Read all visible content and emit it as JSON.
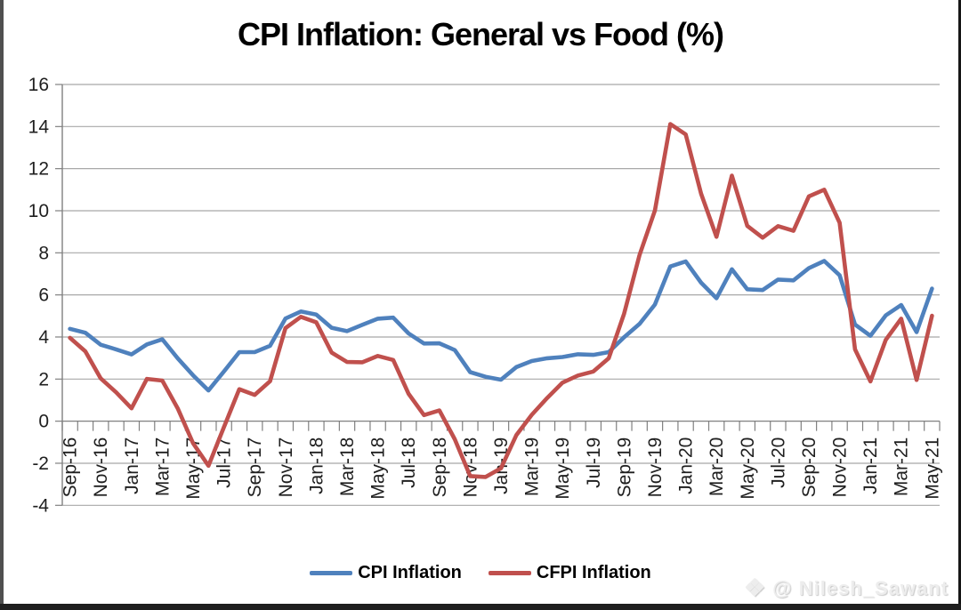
{
  "chart_data": {
    "type": "line",
    "title": "CPI Inflation: General vs Food (%)",
    "xlabel": "",
    "ylabel": "",
    "ylim": [
      -4,
      16
    ],
    "ytick_step": 2,
    "grid": "horizontal",
    "gridline_color": "#a8a8a8",
    "axis_color": "#808080",
    "tick_label_color": "#1f1f1f",
    "legend_position": "bottom",
    "x_label_every_nth": 2,
    "x_categories": [
      "Sep-16",
      "Oct-16",
      "Nov-16",
      "Dec-16",
      "Jan-17",
      "Feb-17",
      "Mar-17",
      "Apr-17",
      "May-17",
      "Jun-17",
      "Jul-17",
      "Aug-17",
      "Sep-17",
      "Oct-17",
      "Nov-17",
      "Dec-17",
      "Jan-18",
      "Feb-18",
      "Mar-18",
      "Apr-18",
      "May-18",
      "Jun-18",
      "Jul-18",
      "Aug-18",
      "Sep-18",
      "Oct-18",
      "Nov-18",
      "Dec-18",
      "Jan-19",
      "Feb-19",
      "Mar-19",
      "Apr-19",
      "May-19",
      "Jun-19",
      "Jul-19",
      "Aug-19",
      "Sep-19",
      "Oct-19",
      "Nov-19",
      "Dec-19",
      "Jan-20",
      "Feb-20",
      "Mar-20",
      "Apr-20",
      "May-20",
      "Jun-20",
      "Jul-20",
      "Aug-20",
      "Sep-20",
      "Oct-20",
      "Nov-20",
      "Dec-20",
      "Jan-21",
      "Feb-21",
      "Mar-21",
      "Apr-21",
      "May-21"
    ],
    "series": [
      {
        "name": "CPI Inflation",
        "color": "#4F81BD",
        "values": [
          4.39,
          4.2,
          3.63,
          3.41,
          3.17,
          3.65,
          3.89,
          2.99,
          2.18,
          1.46,
          2.36,
          3.28,
          3.28,
          3.58,
          4.88,
          5.21,
          5.07,
          4.44,
          4.28,
          4.58,
          4.87,
          4.92,
          4.17,
          3.69,
          3.7,
          3.38,
          2.33,
          2.11,
          1.97,
          2.57,
          2.86,
          2.99,
          3.05,
          3.18,
          3.15,
          3.28,
          3.99,
          4.62,
          5.54,
          7.35,
          7.59,
          6.58,
          5.84,
          7.22,
          6.27,
          6.23,
          6.73,
          6.69,
          7.27,
          7.61,
          6.93,
          4.59,
          4.06,
          5.03,
          5.52,
          4.23,
          6.3
        ]
      },
      {
        "name": "CFPI Inflation",
        "color": "#C0504D",
        "values": [
          3.96,
          3.32,
          2.03,
          1.37,
          0.61,
          2.01,
          1.93,
          0.61,
          -1.05,
          -2.12,
          -0.29,
          1.52,
          1.25,
          1.9,
          4.42,
          4.96,
          4.7,
          3.26,
          2.81,
          2.8,
          3.1,
          2.91,
          1.3,
          0.29,
          0.51,
          -0.86,
          -2.61,
          -2.65,
          -2.24,
          -0.66,
          0.3,
          1.1,
          1.83,
          2.17,
          2.36,
          2.99,
          5.11,
          7.89,
          10.01,
          14.12,
          13.63,
          10.81,
          8.76,
          11.67,
          9.28,
          8.72,
          9.27,
          9.05,
          10.68,
          11.0,
          9.43,
          3.41,
          1.89,
          3.87,
          4.87,
          1.96,
          5.01
        ]
      }
    ]
  },
  "watermark": {
    "icon": "❖",
    "text": "@ Nilesh_Sawant"
  }
}
